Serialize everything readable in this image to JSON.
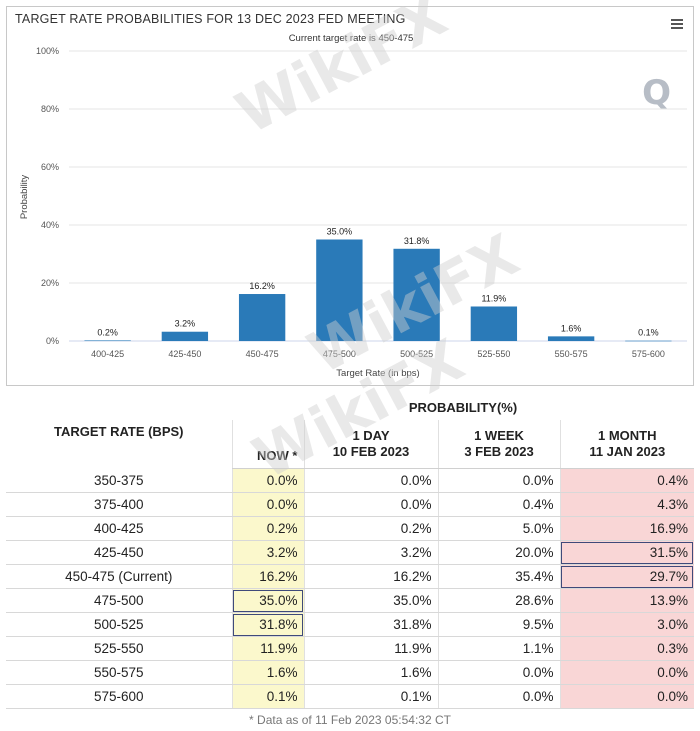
{
  "chart_data": {
    "type": "bar",
    "title": "TARGET RATE PROBABILITIES FOR 13 DEC 2023 FED MEETING",
    "subtitle": "Current target rate is 450-475",
    "xlabel": "Target Rate (in bps)",
    "ylabel": "Probability",
    "ylim": [
      0,
      100
    ],
    "yticks": [
      "0%",
      "20%",
      "40%",
      "60%",
      "80%",
      "100%"
    ],
    "ytick_values": [
      0,
      20,
      40,
      60,
      80,
      100
    ],
    "grid": true,
    "legend": "none",
    "categories": [
      "400-425",
      "425-450",
      "450-475",
      "475-500",
      "500-525",
      "525-550",
      "550-575",
      "575-600"
    ],
    "values": [
      0.2,
      3.2,
      16.2,
      35.0,
      31.8,
      11.9,
      1.6,
      0.1
    ],
    "data_labels": [
      "0.2%",
      "3.2%",
      "16.2%",
      "35.0%",
      "31.8%",
      "11.9%",
      "1.6%",
      "0.1%"
    ],
    "bar_color": "#2a7ab8"
  },
  "watermark": {
    "text": "WikiFX",
    "q_mark": "Q"
  },
  "menu_icon": "hamburger-icon",
  "table": {
    "target_header": "TARGET RATE (BPS)",
    "probability_header": "PROBABILITY(%)",
    "columns": [
      {
        "line1": "NOW *",
        "line2": ""
      },
      {
        "line1": "1 DAY",
        "line2": "10 FEB 2023"
      },
      {
        "line1": "1 WEEK",
        "line2": "3 FEB 2023"
      },
      {
        "line1": "1 MONTH",
        "line2": "11 JAN 2023"
      }
    ],
    "rows": [
      {
        "rate": "350-375",
        "now": "0.0%",
        "day": "0.0%",
        "week": "0.0%",
        "month": "0.4%"
      },
      {
        "rate": "375-400",
        "now": "0.0%",
        "day": "0.0%",
        "week": "0.4%",
        "month": "4.3%"
      },
      {
        "rate": "400-425",
        "now": "0.2%",
        "day": "0.2%",
        "week": "5.0%",
        "month": "16.9%"
      },
      {
        "rate": "425-450",
        "now": "3.2%",
        "day": "3.2%",
        "week": "20.0%",
        "month": "31.5%"
      },
      {
        "rate": "450-475 (Current)",
        "now": "16.2%",
        "day": "16.2%",
        "week": "35.4%",
        "month": "29.7%"
      },
      {
        "rate": "475-500",
        "now": "35.0%",
        "day": "35.0%",
        "week": "28.6%",
        "month": "13.9%"
      },
      {
        "rate": "500-525",
        "now": "31.8%",
        "day": "31.8%",
        "week": "9.5%",
        "month": "3.0%"
      },
      {
        "rate": "525-550",
        "now": "11.9%",
        "day": "11.9%",
        "week": "1.1%",
        "month": "0.3%"
      },
      {
        "rate": "550-575",
        "now": "1.6%",
        "day": "1.6%",
        "week": "0.0%",
        "month": "0.0%"
      },
      {
        "rate": "575-600",
        "now": "0.1%",
        "day": "0.1%",
        "week": "0.0%",
        "month": "0.0%"
      }
    ],
    "footnote": "* Data as of 11 Feb 2023 05:54:32 CT",
    "colors": {
      "now_col": "#fbf8cc",
      "month_col": "#f9d6d6",
      "highlight_box": "#3f4a7a"
    }
  }
}
